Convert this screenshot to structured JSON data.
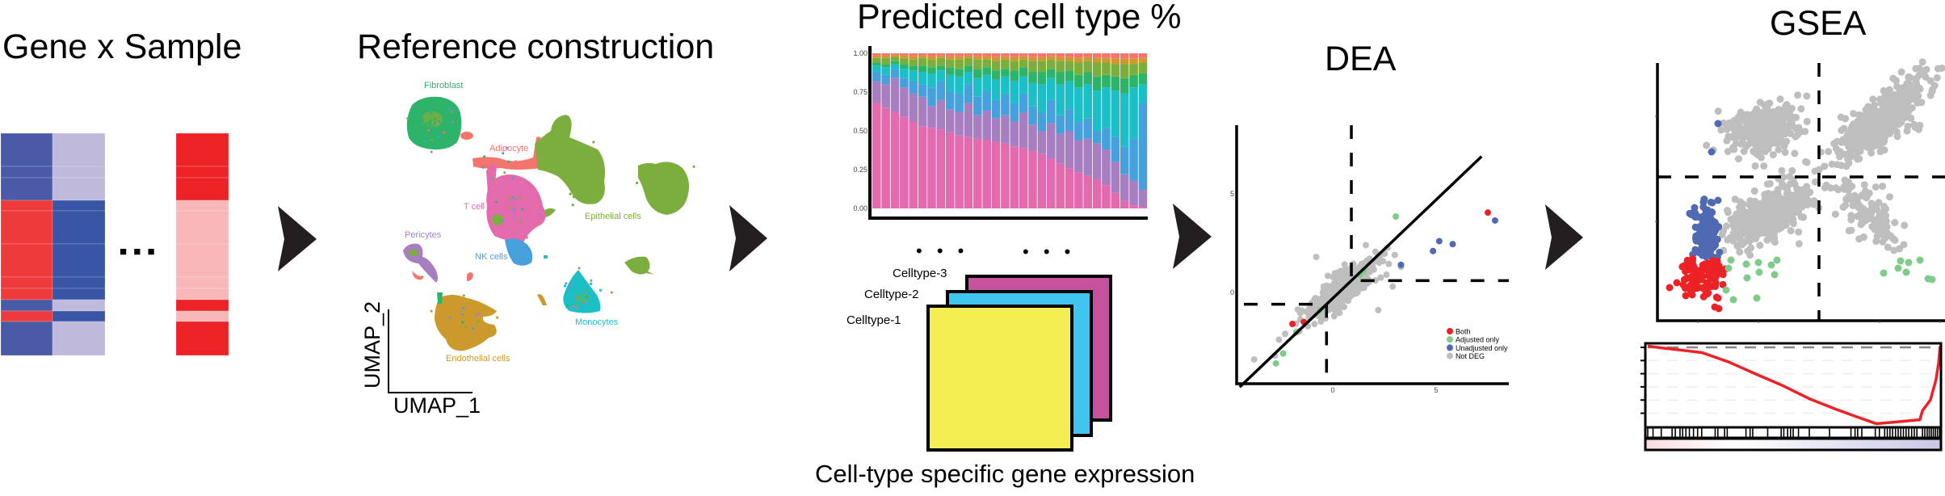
{
  "colors": {
    "arrow": "#231f20",
    "t_cell": "#e36aac",
    "pericytes": "#a77fc1",
    "nk_cells": "#45a0dc",
    "monocytes": "#1dbfc6",
    "fibroblast": "#2db36a",
    "epithelial": "#7cae3e",
    "endothelial": "#cc9a2c",
    "adipocyte": "#f4756d",
    "deg_both": "#ec2226",
    "deg_adjusted": "#7fcb8a",
    "deg_unadjusted": "#4f69b2",
    "not_deg": "#bebebe"
  },
  "gene_sample": {
    "title": "Gene x Sample",
    "ellipsis": "■ ■ ■",
    "palette": {
      "dark_blue": "#4a5aa6",
      "deep_blue": "#3955a5",
      "lavender": "#bfbadb",
      "red": "#ee3a3a",
      "bright_red": "#ec2226",
      "pink": "#f8b8b9"
    },
    "columns": [
      [
        "dark_blue",
        "dark_blue",
        "dark_blue",
        "red",
        "red",
        "red",
        "red",
        "red",
        "dark_blue",
        "red",
        "dark_blue"
      ],
      [
        "lavender",
        "lavender",
        "lavender",
        "deep_blue",
        "deep_blue",
        "deep_blue",
        "deep_blue",
        "deep_blue",
        "lavender",
        "deep_blue",
        "lavender"
      ],
      [
        "bright_red",
        "bright_red",
        "bright_red",
        "pink",
        "pink",
        "pink",
        "pink",
        "pink",
        "bright_red",
        "pink",
        "bright_red"
      ]
    ]
  },
  "reference": {
    "title": "Reference construction",
    "x_axis": "UMAP_1",
    "y_axis": "UMAP_2",
    "labels": {
      "fibroblast": "Fibroblast",
      "adipocyte": "Adipocyte",
      "t_cell": "T cell",
      "epithelial": "Epithelial cells",
      "pericytes": "Pericytes",
      "nk_cells": "NK cells",
      "monocytes": "Monocytes",
      "endothelial": "Endothelial cells"
    }
  },
  "deconvolution": {
    "celltype_labels": [
      "Celltype-3",
      "Celltype-2",
      "Celltype-1"
    ],
    "celltype_colors": [
      "#c6519c",
      "#40c6ee",
      "#f4ee53"
    ],
    "ellipsis": "• • •",
    "caption": "Cell-type specific gene expression"
  },
  "dea": {
    "title": "DEA"
  },
  "gsea": {
    "title": "GSEA"
  },
  "chart_data": [
    {
      "id": "predicted",
      "type": "bar",
      "stacked": true,
      "title": "Predicted cell type %",
      "ylim": [
        0,
        1
      ],
      "yticks": [
        "0.00",
        "0.25",
        "0.50",
        "0.75",
        "1.00"
      ],
      "grid": false,
      "layers": [
        {
          "color": "#e36aac",
          "cumulative_top": [
            0.68,
            0.65,
            0.62,
            0.59,
            0.56,
            0.53,
            0.52,
            0.51,
            0.49,
            0.47,
            0.46,
            0.45,
            0.44,
            0.43,
            0.42,
            0.4,
            0.39,
            0.37,
            0.35,
            0.32,
            0.29,
            0.26,
            0.23,
            0.21,
            0.19,
            0.15,
            0.1,
            0.05,
            0.02,
            0.01
          ]
        },
        {
          "color": "#a77fc1",
          "cumulative_top": [
            0.82,
            0.8,
            0.84,
            0.78,
            0.74,
            0.72,
            0.66,
            0.7,
            0.64,
            0.62,
            0.68,
            0.6,
            0.63,
            0.58,
            0.6,
            0.56,
            0.62,
            0.54,
            0.5,
            0.55,
            0.48,
            0.5,
            0.44,
            0.45,
            0.42,
            0.38,
            0.3,
            0.22,
            0.18,
            0.12
          ]
        },
        {
          "color": "#45a0dc",
          "cumulative_top": [
            0.88,
            0.86,
            0.9,
            0.84,
            0.82,
            0.8,
            0.78,
            0.82,
            0.76,
            0.74,
            0.8,
            0.72,
            0.76,
            0.7,
            0.74,
            0.68,
            0.74,
            0.66,
            0.62,
            0.7,
            0.6,
            0.64,
            0.56,
            0.58,
            0.5,
            0.52,
            0.46,
            0.4,
            0.45,
            0.68
          ]
        },
        {
          "color": "#1dbfc6",
          "cumulative_top": [
            0.92,
            0.91,
            0.93,
            0.9,
            0.89,
            0.88,
            0.87,
            0.89,
            0.86,
            0.85,
            0.88,
            0.84,
            0.86,
            0.83,
            0.85,
            0.82,
            0.85,
            0.81,
            0.8,
            0.84,
            0.8,
            0.82,
            0.78,
            0.8,
            0.76,
            0.78,
            0.76,
            0.74,
            0.78,
            0.8
          ]
        },
        {
          "color": "#2db36a",
          "cumulative_top": [
            0.94,
            0.93,
            0.95,
            0.93,
            0.92,
            0.92,
            0.91,
            0.92,
            0.91,
            0.9,
            0.92,
            0.9,
            0.91,
            0.89,
            0.9,
            0.89,
            0.91,
            0.88,
            0.88,
            0.9,
            0.88,
            0.89,
            0.86,
            0.88,
            0.85,
            0.86,
            0.85,
            0.84,
            0.86,
            0.87
          ]
        },
        {
          "color": "#7cae3e",
          "cumulative_top": [
            0.97,
            0.97,
            0.98,
            0.97,
            0.96,
            0.97,
            0.96,
            0.97,
            0.96,
            0.96,
            0.97,
            0.96,
            0.96,
            0.95,
            0.96,
            0.95,
            0.96,
            0.95,
            0.95,
            0.96,
            0.95,
            0.95,
            0.94,
            0.95,
            0.94,
            0.94,
            0.93,
            0.93,
            0.93,
            0.94
          ]
        },
        {
          "color": "#cc9a2c",
          "cumulative_top": [
            0.985,
            0.985,
            0.99,
            0.985,
            0.98,
            0.985,
            0.98,
            0.985,
            0.98,
            0.98,
            0.985,
            0.98,
            0.98,
            0.975,
            0.98,
            0.975,
            0.98,
            0.975,
            0.975,
            0.98,
            0.975,
            0.975,
            0.97,
            0.975,
            0.97,
            0.97,
            0.965,
            0.965,
            0.965,
            0.97
          ]
        },
        {
          "color": "#f4756d",
          "cumulative_top": [
            1,
            1,
            1,
            1,
            1,
            1,
            1,
            1,
            1,
            1,
            1,
            1,
            1,
            1,
            1,
            1,
            1,
            1,
            1,
            1,
            1,
            1,
            1,
            1,
            1,
            1,
            1,
            1,
            1,
            1
          ]
        }
      ]
    },
    {
      "id": "dea",
      "type": "scatter",
      "xticks": [
        "0",
        "5"
      ],
      "yticks": [
        "0",
        "5"
      ],
      "xtick_values": [
        0,
        5
      ],
      "ytick_values": [
        0,
        5
      ],
      "identity_line": {
        "slope": 1,
        "intercept": -0.3
      },
      "dashed_thresholds": [
        {
          "x": 0.9,
          "y": 0.6,
          "quadrant": "upper-right"
        },
        {
          "x": -0.3,
          "y": -0.6,
          "quadrant": "lower-left"
        }
      ],
      "legend": {
        "position": "bottom-right",
        "entries": [
          {
            "label": "Both",
            "color": "#ec2226"
          },
          {
            "label": "Adjusted only",
            "color": "#7fcb8a"
          },
          {
            "label": "Unadjusted only",
            "color": "#4f69b2"
          },
          {
            "label": "Not DEG",
            "color": "#bebebe"
          }
        ]
      },
      "background_cloud": {
        "color": "#bebebe",
        "center": [
          0.5,
          0.2
        ],
        "sd_along": 1.05,
        "sd_across": 0.33,
        "angle_deg": 42,
        "n": 420,
        "xlim": [
          -2.2,
          2.9
        ]
      },
      "points": [
        {
          "x": -0.8,
          "y": 1.8,
          "group": "Not DEG"
        },
        {
          "x": -3.8,
          "y": -3.4,
          "group": "Not DEG"
        },
        {
          "x": -2.8,
          "y": -3.2,
          "group": "Not DEG"
        },
        {
          "x": -2.3,
          "y": -2.1,
          "group": "Not DEG"
        },
        {
          "x": 1.6,
          "y": 2.4,
          "group": "Not DEG"
        },
        {
          "x": 3.0,
          "y": 1.9,
          "group": "Not DEG"
        },
        {
          "x": 3.3,
          "y": 1.3,
          "group": "Not DEG"
        },
        {
          "x": 2.6,
          "y": 0.9,
          "group": "Not DEG"
        },
        {
          "x": 2.9,
          "y": 0.3,
          "group": "Not DEG"
        },
        {
          "x": 2.2,
          "y": -0.9,
          "group": "Not DEG"
        },
        {
          "x": -2.6,
          "y": -2.4,
          "group": "Not DEG"
        },
        {
          "x": 3.05,
          "y": 3.85,
          "group": "Adjusted only"
        },
        {
          "x": 1.5,
          "y": 1.1,
          "group": "Adjusted only"
        },
        {
          "x": 1.3,
          "y": 0.9,
          "group": "Adjusted only"
        },
        {
          "x": -0.6,
          "y": -0.9,
          "group": "Adjusted only"
        },
        {
          "x": -1.75,
          "y": -2.0,
          "group": "Adjusted only"
        },
        {
          "x": -2.4,
          "y": -3.1,
          "group": "Adjusted only"
        },
        {
          "x": -2.75,
          "y": -3.6,
          "group": "Adjusted only"
        },
        {
          "x": 7.5,
          "y": 4.05,
          "group": "Both"
        },
        {
          "x": -1.95,
          "y": -1.6,
          "group": "Both"
        },
        {
          "x": -1.4,
          "y": -1.5,
          "group": "Both"
        },
        {
          "x": 7.85,
          "y": 3.65,
          "group": "Unadjusted only"
        },
        {
          "x": 5.15,
          "y": 2.6,
          "group": "Unadjusted only"
        },
        {
          "x": 4.85,
          "y": 2.1,
          "group": "Unadjusted only"
        },
        {
          "x": 5.8,
          "y": 2.45,
          "group": "Unadjusted only"
        },
        {
          "x": 3.3,
          "y": 1.4,
          "group": "Unadjusted only"
        }
      ]
    },
    {
      "id": "gsea_scatter",
      "type": "scatter",
      "dashed_lines": {
        "x": 0,
        "y": 0
      },
      "background_clusters": [
        {
          "color": "#bebebe",
          "center": [
            -1.4,
            1.2
          ],
          "sd_along": 0.45,
          "sd_across": 0.33,
          "angle_deg": 10,
          "n": 320
        },
        {
          "color": "#bebebe",
          "center": [
            1.6,
            1.5
          ],
          "sd_along": 0.75,
          "sd_across": 0.25,
          "angle_deg": 40,
          "n": 380
        },
        {
          "color": "#bebebe",
          "center": [
            -1.25,
            -0.95
          ],
          "sd_along": 0.6,
          "sd_across": 0.28,
          "angle_deg": 28,
          "n": 380,
          "xlim": [
            -2.45,
            1
          ]
        },
        {
          "color": "#4f69b2",
          "center": [
            -2.75,
            -1.3
          ],
          "sd_along": 0.42,
          "sd_across": 0.2,
          "angle_deg": 80,
          "n": 140,
          "xlim": [
            -3.3,
            -2.45
          ],
          "ylim": [
            -2.0,
            -0.55
          ]
        },
        {
          "color": "#ec2226",
          "center": [
            -2.95,
            -2.45
          ],
          "sd_along": 0.35,
          "sd_across": 0.28,
          "angle_deg": 0,
          "n": 110,
          "xlim": [
            -3.4,
            -2.3
          ],
          "ylim": [
            -3.1,
            -2.0
          ]
        },
        {
          "color": "#bebebe",
          "center": [
            1.2,
            -0.85
          ],
          "sd_along": 0.5,
          "sd_across": 0.22,
          "angle_deg": -50,
          "n": 130
        }
      ],
      "points": [
        {
          "x": -2.5,
          "y": 1.32,
          "group": "Unadjusted only"
        },
        {
          "x": -2.66,
          "y": 0.62,
          "group": "Unadjusted only"
        },
        {
          "x": -2.5,
          "y": -0.58,
          "group": "Unadjusted only"
        },
        {
          "x": -3.7,
          "y": -2.74,
          "group": "Both"
        },
        {
          "x": -3.52,
          "y": -2.62,
          "group": "Both"
        },
        {
          "x": -2.5,
          "y": -3.0,
          "group": "Both"
        },
        {
          "x": -2.58,
          "y": -3.22,
          "group": "Both"
        },
        {
          "x": -2.48,
          "y": -3.26,
          "group": "Both"
        },
        {
          "x": -3.14,
          "y": -2.92,
          "group": "Both"
        },
        {
          "x": -2.24,
          "y": -2.26,
          "group": "Adjusted only"
        },
        {
          "x": -1.8,
          "y": -2.16,
          "group": "Adjusted only"
        },
        {
          "x": -1.5,
          "y": -2.12,
          "group": "Adjusted only"
        },
        {
          "x": -1.48,
          "y": -2.36,
          "group": "Adjusted only"
        },
        {
          "x": -1.18,
          "y": -2.18,
          "group": "Adjusted only"
        },
        {
          "x": -1.04,
          "y": -2.06,
          "group": "Adjusted only"
        },
        {
          "x": -1.1,
          "y": -2.42,
          "group": "Adjusted only"
        },
        {
          "x": -1.78,
          "y": -2.5,
          "group": "Adjusted only"
        },
        {
          "x": -2.3,
          "y": -2.8,
          "group": "Adjusted only"
        },
        {
          "x": -2.12,
          "y": -3.04,
          "group": "Adjusted only"
        },
        {
          "x": -1.54,
          "y": -3.0,
          "group": "Adjusted only"
        },
        {
          "x": -2.18,
          "y": -2.06,
          "group": "Adjusted only"
        },
        {
          "x": 1.6,
          "y": -2.38,
          "group": "Adjusted only"
        },
        {
          "x": 1.96,
          "y": -2.26,
          "group": "Adjusted only"
        },
        {
          "x": 2.16,
          "y": -2.36,
          "group": "Adjusted only"
        },
        {
          "x": 2.22,
          "y": -2.12,
          "group": "Adjusted only"
        },
        {
          "x": 2.5,
          "y": -2.06,
          "group": "Adjusted only"
        },
        {
          "x": 2.7,
          "y": -2.52,
          "group": "Adjusted only"
        },
        {
          "x": 2.8,
          "y": -2.54,
          "group": "Adjusted only"
        },
        {
          "x": 2.02,
          "y": -2.08,
          "group": "Adjusted only"
        }
      ]
    },
    {
      "id": "gsea_running_score",
      "type": "line",
      "color": "#ec2226",
      "xlim": [
        0,
        1
      ],
      "ylim": [
        -0.6,
        0.03
      ],
      "ytick_values": [
        0,
        -0.1,
        -0.2,
        -0.3,
        -0.4,
        -0.5
      ],
      "x": [
        0,
        0.055,
        0.11,
        0.185,
        0.275,
        0.366,
        0.46,
        0.551,
        0.642,
        0.716,
        0.78,
        0.854,
        0.928,
        0.937,
        0.964,
        0.983,
        0.992,
        0.997
      ],
      "y": [
        0.01,
        -0.006,
        -0.02,
        -0.04,
        -0.11,
        -0.2,
        -0.29,
        -0.39,
        -0.47,
        -0.53,
        -0.58,
        -0.565,
        -0.55,
        -0.48,
        -0.4,
        -0.245,
        -0.12,
        0.01
      ],
      "hit_positions": [
        0,
        0.018,
        0.046,
        0.083,
        0.094,
        0.11,
        0.119,
        0.13,
        0.142,
        0.156,
        0.17,
        0.184,
        0.23,
        0.239,
        0.262,
        0.271,
        0.335,
        0.349,
        0.358,
        0.409,
        0.455,
        0.464,
        0.477,
        0.487,
        0.496,
        0.514,
        0.551,
        0.62,
        0.693,
        0.707,
        0.716,
        0.73,
        0.776,
        0.79,
        0.808,
        0.817,
        0.826,
        0.835,
        0.845,
        0.854,
        0.863,
        0.872,
        0.881,
        0.89,
        0.9,
        0.909,
        0.918,
        0.937,
        0.945,
        0.953,
        0.96,
        0.967,
        0.974,
        0.981,
        0.988,
        0.995
      ],
      "rank_gradient": [
        "#f8dcdc",
        "#ffffff",
        "#c8c8e6"
      ]
    }
  ]
}
